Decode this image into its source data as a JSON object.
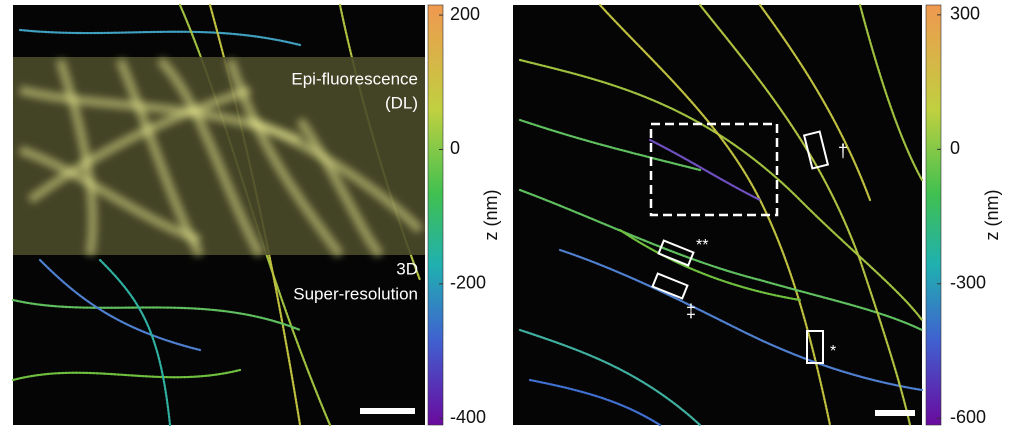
{
  "panels": [
    {
      "overlay_labels": [
        "Epi-fluorescence",
        "(DL)"
      ],
      "bottom_labels": [
        "3D",
        "Super-resolution"
      ],
      "colorbar": {
        "label": "z (nm)",
        "lim": [
          -410,
          215
        ],
        "ticks": [
          200,
          0,
          -200,
          -400
        ]
      }
    },
    {
      "annotations": [
        "†",
        "**",
        "‡",
        "*"
      ],
      "colorbar": {
        "label": "z (nm)",
        "lim": [
          -615,
          322
        ],
        "ticks": [
          300,
          0,
          -300,
          -600
        ]
      }
    }
  ]
}
